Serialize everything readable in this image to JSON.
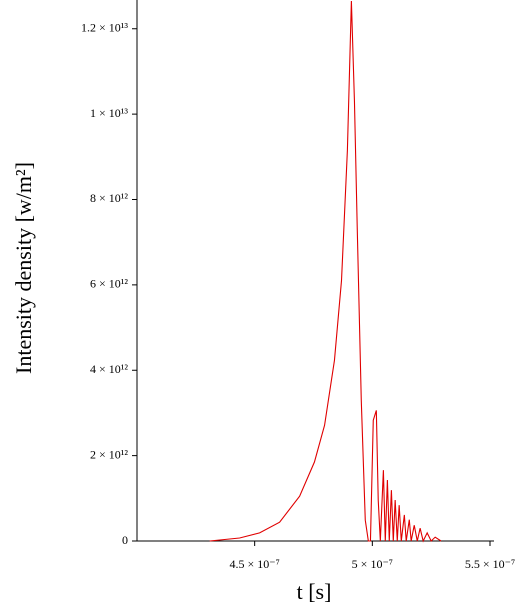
{
  "chart_data": {
    "type": "line",
    "xlabel": "t [s]",
    "ylabel": "Intensity density [w/m²]",
    "xlim": [
      4e-07,
      5.5e-07
    ],
    "ylim": [
      0,
      12650000000000.0
    ],
    "xticks": [
      {
        "value": 4.5e-07,
        "label": "4.5 × 10⁻⁷"
      },
      {
        "value": 5e-07,
        "label": "5 × 10⁻⁷"
      },
      {
        "value": 5.5e-07,
        "label": "5.5 × 10⁻⁷"
      }
    ],
    "yticks": [
      0,
      {
        "value": 2000000000000.0,
        "label": "2 × 10¹²"
      },
      {
        "value": 4000000000000.0,
        "label": "4 × 10¹²"
      },
      {
        "value": 6000000000000.0,
        "label": "6 × 10¹²"
      },
      {
        "value": 8000000000000.0,
        "label": "8 × 10¹²"
      },
      {
        "value": 10000000000000.0,
        "label": "1 × 10¹³"
      },
      {
        "value": 12000000000000.0,
        "label": "1.2 × 10¹³"
      }
    ],
    "series": [
      {
        "color": "#e00000",
        "x": [
          4.309e-07,
          4.436e-07,
          4.521e-07,
          4.606e-07,
          4.691e-07,
          4.754e-07,
          4.797e-07,
          4.839e-07,
          4.869e-07,
          4.894e-07,
          4.911e-07,
          4.924e-07,
          4.936e-07,
          4.953e-07,
          4.97e-07,
          4.983e-07,
          4.992e-07,
          5.004e-07,
          5.017e-07,
          5.025e-07,
          5.034e-07,
          5.047e-07,
          5.055e-07,
          5.064e-07,
          5.072e-07,
          5.081e-07,
          5.089e-07,
          5.097e-07,
          5.106e-07,
          5.114e-07,
          5.123e-07,
          5.136e-07,
          5.144e-07,
          5.157e-07,
          5.165e-07,
          5.178e-07,
          5.191e-07,
          5.203e-07,
          5.216e-07,
          5.233e-07,
          5.25e-07,
          5.267e-07,
          5.292e-07
        ],
        "values": [
          0,
          70000000000.0,
          190000000000.0,
          440000000000.0,
          1050000000000.0,
          1850000000000.0,
          2710000000000.0,
          4230000000000.0,
          6100000000000.0,
          9150000000000.0,
          12650000000000.0,
          10300000000000.0,
          7300000000000.0,
          3300000000000.0,
          490000000000.0,
          0,
          0,
          2830000000000.0,
          3060000000000.0,
          960000000000.0,
          0,
          1660000000000.0,
          0,
          1430000000000.0,
          0,
          1190000000000.0,
          0,
          960000000000.0,
          0,
          840000000000.0,
          0,
          610000000000.0,
          0,
          500000000000.0,
          0,
          370000000000.0,
          0,
          300000000000.0,
          0,
          190000000000.0,
          0,
          90000000000.0,
          0
        ]
      }
    ]
  }
}
